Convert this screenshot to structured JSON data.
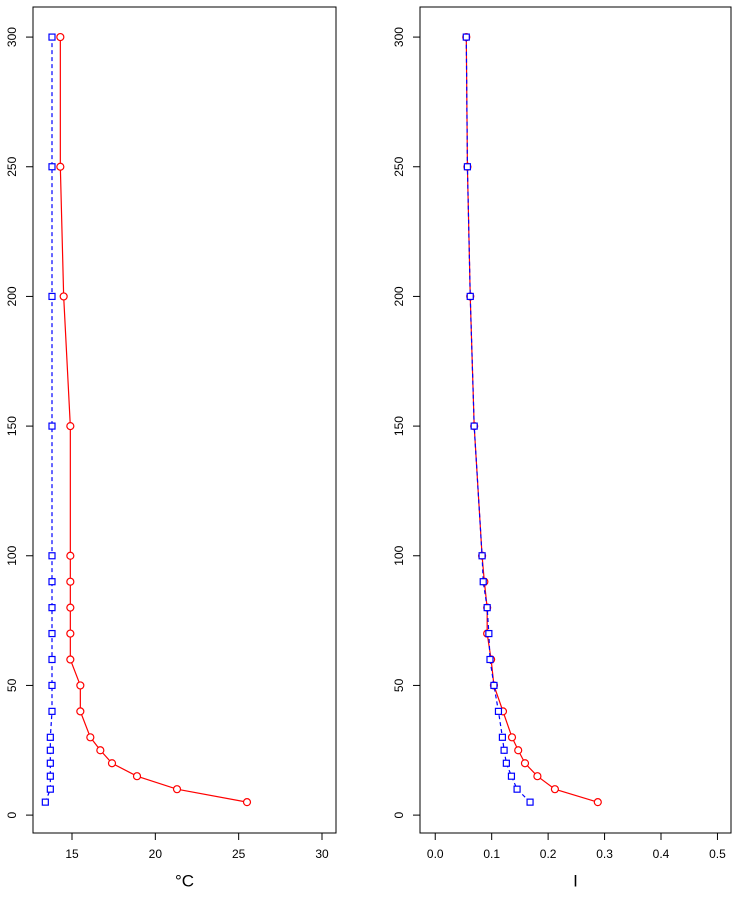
{
  "chart_data": [
    {
      "type": "line",
      "x_label": "°C",
      "y": [
        5,
        10,
        15,
        20,
        25,
        30,
        40,
        50,
        60,
        70,
        80,
        90,
        100,
        150,
        200,
        250,
        300
      ],
      "xlim": [
        12.66,
        30.84
      ],
      "xticks": [
        15,
        20,
        25,
        30
      ],
      "ylim": [
        -6.9,
        311.6
      ],
      "yticks": [
        0,
        50,
        100,
        150,
        200,
        250,
        300
      ],
      "series": [
        {
          "color": "#ff0000",
          "marker": "circle",
          "line": "solid",
          "values": [
            25.5,
            21.3,
            18.9,
            17.4,
            16.7,
            16.1,
            15.5,
            15.5,
            14.9,
            14.9,
            14.9,
            14.9,
            14.9,
            14.9,
            14.5,
            14.3,
            14.3
          ]
        },
        {
          "color": "#0000ff",
          "marker": "square",
          "line": "dashed",
          "values": [
            13.4,
            13.7,
            13.7,
            13.7,
            13.7,
            13.7,
            13.8,
            13.8,
            13.8,
            13.8,
            13.8,
            13.8,
            13.8,
            13.8,
            13.8,
            13.8,
            13.8
          ]
        }
      ]
    },
    {
      "type": "line",
      "x_label": "I",
      "y": [
        5,
        10,
        15,
        20,
        25,
        30,
        40,
        50,
        60,
        70,
        80,
        90,
        100,
        150,
        200,
        250,
        300
      ],
      "xlim": [
        -0.027,
        0.524
      ],
      "xticks": [
        {
          "value": 0,
          "label": "0.0"
        },
        0.1,
        0.2,
        0.3,
        0.4,
        0.5
      ],
      "ylim": [
        -6.9,
        311.6
      ],
      "yticks": [
        0,
        50,
        100,
        150,
        200,
        250,
        300
      ],
      "series": [
        {
          "color": "#ff0000",
          "marker": "circle",
          "line": "solid",
          "values": [
            0.288,
            0.212,
            0.181,
            0.159,
            0.147,
            0.136,
            0.12,
            0.104,
            0.099,
            0.092,
            0.092,
            0.087,
            0.083,
            0.069,
            0.062,
            0.057,
            0.055
          ]
        },
        {
          "color": "#0000ff",
          "marker": "square",
          "line": "dashed",
          "values": [
            0.168,
            0.145,
            0.135,
            0.126,
            0.122,
            0.119,
            0.112,
            0.104,
            0.097,
            0.095,
            0.092,
            0.085,
            0.083,
            0.069,
            0.062,
            0.057,
            0.055
          ]
        }
      ]
    }
  ]
}
